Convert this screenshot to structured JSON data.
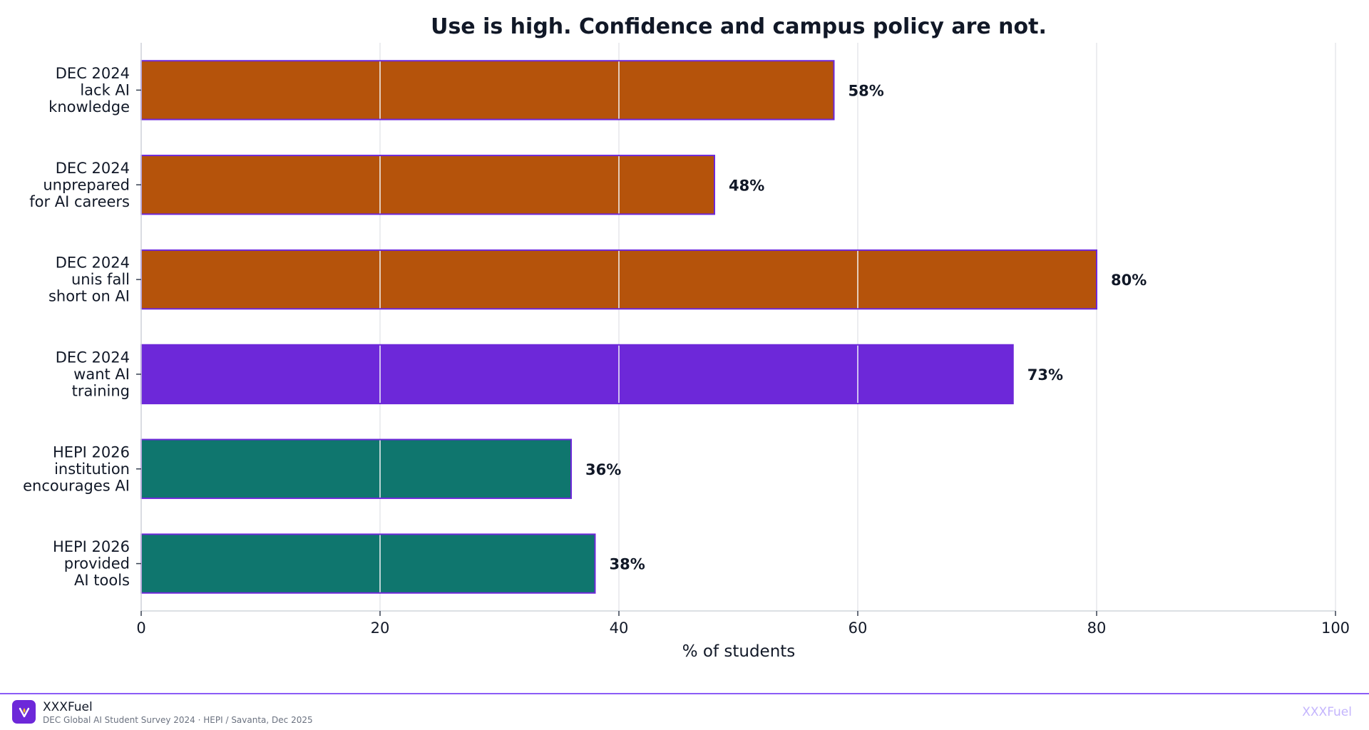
{
  "chart_data": {
    "type": "bar",
    "orientation": "horizontal",
    "title": "Use is high. Confidence and campus policy are not.",
    "xlabel": "% of students",
    "ylabel": "",
    "xlim": [
      0,
      100
    ],
    "x_ticks": [
      "0",
      "20",
      "40",
      "60",
      "80",
      "100"
    ],
    "grid": "vertical",
    "categories": [
      [
        "DEC 2024",
        "lack AI",
        "knowledge"
      ],
      [
        "DEC 2024",
        "unprepared",
        "for AI careers"
      ],
      [
        "DEC 2024",
        "unis fall",
        "short on AI"
      ],
      [
        "DEC 2024",
        "want AI",
        "training"
      ],
      [
        "HEPI 2026",
        "institution",
        "encourages AI"
      ],
      [
        "HEPI 2026",
        "provided",
        "AI tools"
      ]
    ],
    "values": [
      58,
      48,
      80,
      73,
      36,
      38
    ],
    "value_labels": [
      "58%",
      "48%",
      "80%",
      "73%",
      "36%",
      "38%"
    ],
    "colors": [
      "#b5530b",
      "#b5530b",
      "#b5530b",
      "#6d28d9",
      "#0f766e",
      "#0f766e"
    ],
    "bar_edge_color": "#6d28d9"
  },
  "footer": {
    "brand": "XXXFuel",
    "source": "DEC Global AI Student Survey 2024  ·  HEPI / Savanta, Dec 2025",
    "watermark": "XXXFuel"
  }
}
